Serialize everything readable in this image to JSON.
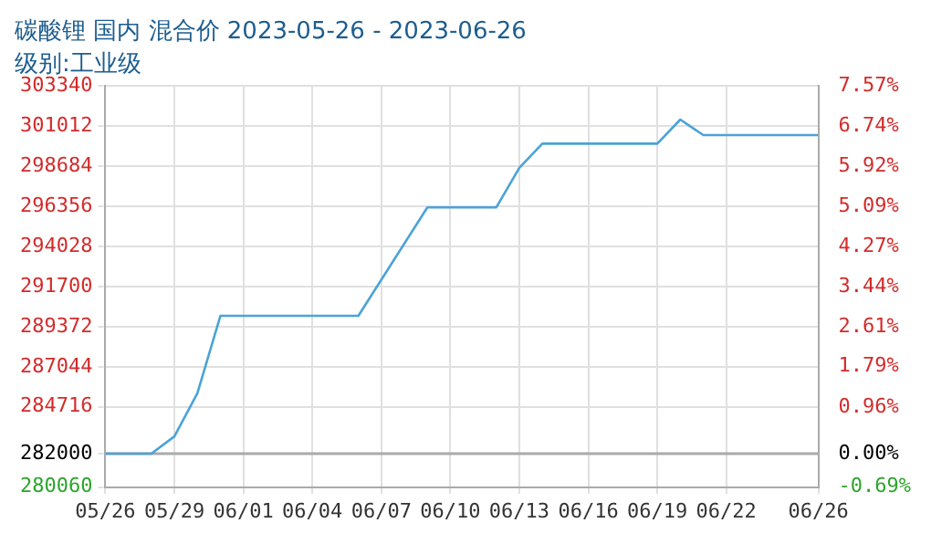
{
  "chart_data": {
    "type": "line",
    "title": "碳酸锂 国内 混合价 2023-05-26 - 2023-06-26",
    "subtitle": "级别:工业级",
    "x": [
      "2023-05-26",
      "2023-05-27",
      "2023-05-28",
      "2023-05-29",
      "2023-05-30",
      "2023-05-31",
      "2023-06-06",
      "2023-06-09",
      "2023-06-12",
      "2023-06-13",
      "2023-06-14",
      "2023-06-19",
      "2023-06-20",
      "2023-06-21",
      "2023-06-26"
    ],
    "series": [
      {
        "color": "#4aa3d8",
        "values": [
          282000,
          282000,
          282000,
          283000,
          285500,
          290000,
          290000,
          296300,
          296300,
          298600,
          300000,
          300000,
          301400,
          300500,
          300500
        ]
      }
    ],
    "xlim": [
      "2023-05-26",
      "2023-06-26"
    ],
    "xticks": [
      {
        "value": "2023-05-26",
        "label": "05/26"
      },
      {
        "value": "2023-05-29",
        "label": "05/29"
      },
      {
        "value": "2023-06-01",
        "label": "06/01"
      },
      {
        "value": "2023-06-04",
        "label": "06/04"
      },
      {
        "value": "2023-06-07",
        "label": "06/07"
      },
      {
        "value": "2023-06-10",
        "label": "06/10"
      },
      {
        "value": "2023-06-13",
        "label": "06/13"
      },
      {
        "value": "2023-06-16",
        "label": "06/16"
      },
      {
        "value": "2023-06-19",
        "label": "06/19"
      },
      {
        "value": "2023-06-22",
        "label": "06/22"
      },
      {
        "value": "2023-06-26",
        "label": "06/26"
      }
    ],
    "ylim": [
      280060,
      303340
    ],
    "yticks": [
      280060,
      282000,
      284716,
      287044,
      289372,
      291700,
      294028,
      296356,
      298684,
      301012,
      303340
    ],
    "y2lim": [
      -0.69,
      7.57
    ],
    "y2ticks": [
      {
        "value": -0.69,
        "label": "-0.69%"
      },
      {
        "value": 0,
        "label": "0.00%"
      },
      {
        "value": 0.96,
        "label": "0.96%"
      },
      {
        "value": 1.79,
        "label": "1.79%"
      },
      {
        "value": 2.61,
        "label": "2.61%"
      },
      {
        "value": 3.44,
        "label": "3.44%"
      },
      {
        "value": 4.27,
        "label": "4.27%"
      },
      {
        "value": 5.09,
        "label": "5.09%"
      },
      {
        "value": 5.92,
        "label": "5.92%"
      },
      {
        "value": 6.74,
        "label": "6.74%"
      },
      {
        "value": 7.57,
        "label": "7.57%"
      }
    ],
    "ref_lines": [
      {
        "axis": "y",
        "value": 282000,
        "color": "#aaaaaa"
      }
    ],
    "grid": true,
    "legend": false,
    "marker": "none",
    "line_style": "solid"
  }
}
